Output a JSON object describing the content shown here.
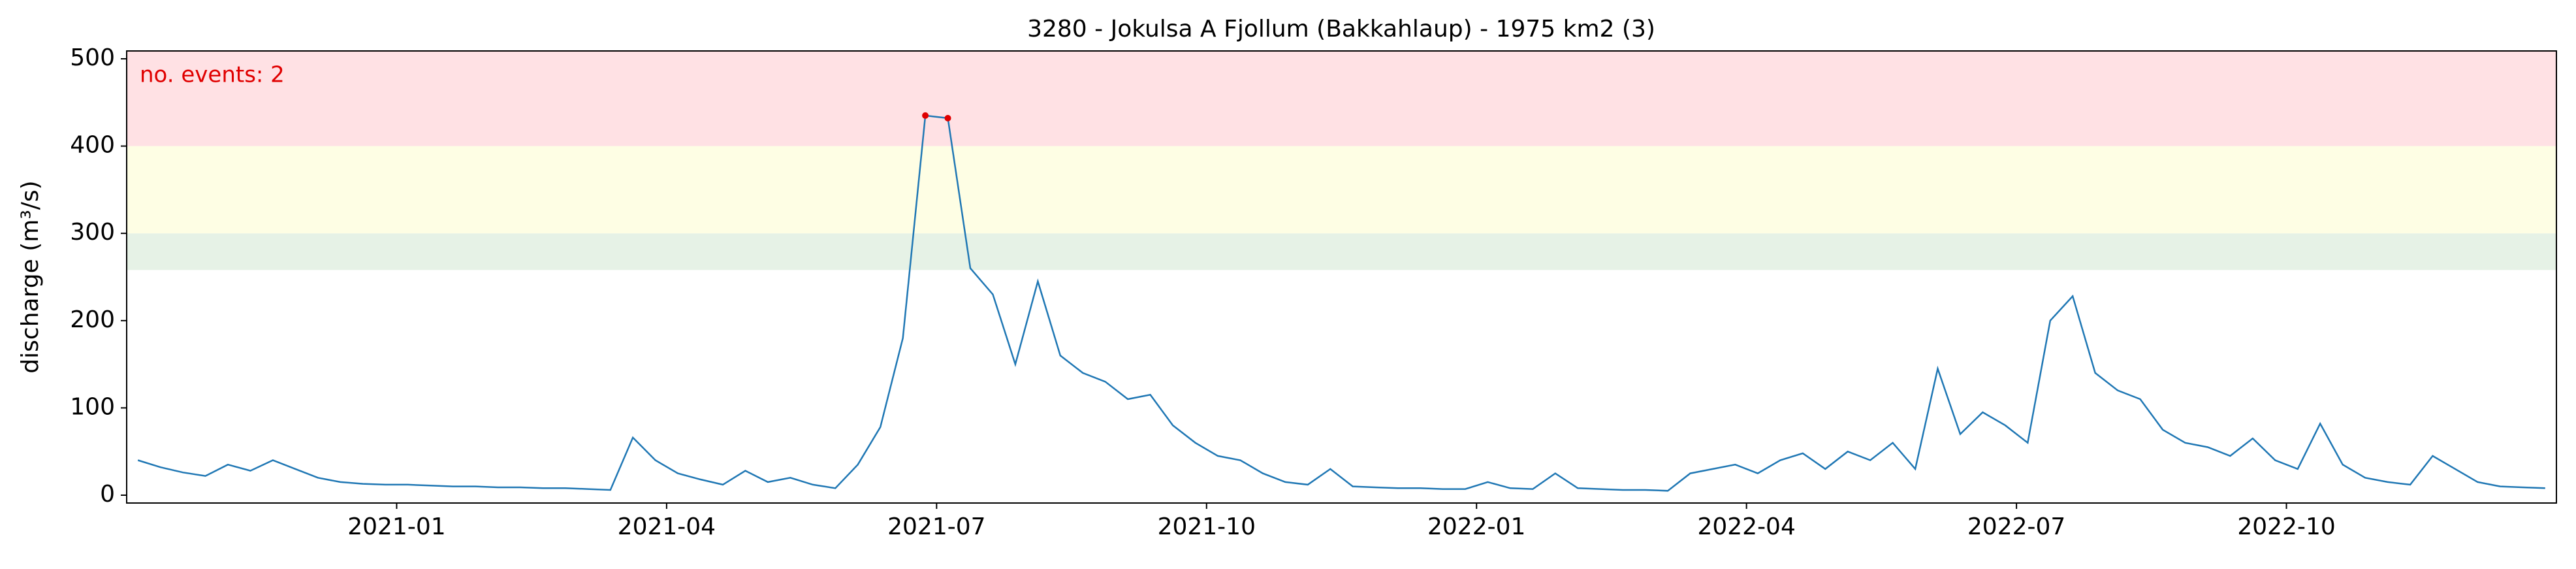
{
  "chart_data": {
    "type": "line",
    "title": "3280 - Jokulsa A Fjollum (Bakkahlaup) - 1975 km2 (3)",
    "ylabel": "discharge (m³/s)",
    "annotation": "no. events: 2",
    "annotation_color": "#e00000",
    "color": "#1f77b4",
    "x": [
      "2020-10",
      "2020-10",
      "2020-10",
      "2020-10",
      "2020-11",
      "2020-11",
      "2020-11",
      "2020-11",
      "2020-12",
      "2020-12",
      "2020-12",
      "2020-12",
      "2021-01",
      "2021-01",
      "2021-01",
      "2021-01",
      "2021-02",
      "2021-02",
      "2021-02",
      "2021-02",
      "2021-03",
      "2021-03",
      "2021-03",
      "2021-03",
      "2021-04",
      "2021-04",
      "2021-04",
      "2021-04",
      "2021-05",
      "2021-05",
      "2021-05",
      "2021-05",
      "2021-06",
      "2021-06",
      "2021-06",
      "2021-06",
      "2021-07",
      "2021-07",
      "2021-07",
      "2021-07",
      "2021-08",
      "2021-08",
      "2021-08",
      "2021-08",
      "2021-09",
      "2021-09",
      "2021-09",
      "2021-09",
      "2021-10",
      "2021-10",
      "2021-10",
      "2021-10",
      "2021-11",
      "2021-11",
      "2021-11",
      "2021-11",
      "2021-12",
      "2021-12",
      "2021-12",
      "2021-12",
      "2022-01",
      "2022-01",
      "2022-01",
      "2022-01",
      "2022-02",
      "2022-02",
      "2022-02",
      "2022-02",
      "2022-03",
      "2022-03",
      "2022-03",
      "2022-03",
      "2022-04",
      "2022-04",
      "2022-04",
      "2022-04",
      "2022-05",
      "2022-05",
      "2022-05",
      "2022-05",
      "2022-06",
      "2022-06",
      "2022-06",
      "2022-06",
      "2022-07",
      "2022-07",
      "2022-07",
      "2022-07",
      "2022-08",
      "2022-08",
      "2022-08",
      "2022-08",
      "2022-09",
      "2022-09",
      "2022-09",
      "2022-09",
      "2022-10",
      "2022-10",
      "2022-10",
      "2022-10",
      "2022-11",
      "2022-11",
      "2022-11",
      "2022-11",
      "2022-12",
      "2022-12",
      "2022-12",
      "2022-12"
    ],
    "values": [
      40,
      32,
      26,
      22,
      35,
      28,
      40,
      30,
      20,
      15,
      13,
      12,
      12,
      11,
      10,
      10,
      9,
      9,
      8,
      8,
      7,
      6,
      66,
      40,
      25,
      18,
      12,
      28,
      15,
      20,
      12,
      8,
      35,
      78,
      180,
      435,
      432,
      260,
      230,
      150,
      245,
      160,
      140,
      130,
      110,
      115,
      80,
      60,
      45,
      40,
      25,
      15,
      12,
      30,
      10,
      9,
      8,
      8,
      7,
      7,
      15,
      8,
      7,
      25,
      8,
      7,
      6,
      6,
      5,
      25,
      30,
      35,
      25,
      40,
      48,
      30,
      50,
      40,
      60,
      30,
      145,
      70,
      95,
      80,
      60,
      200,
      228,
      140,
      120,
      110,
      75,
      60,
      55,
      45,
      65,
      40,
      30,
      82,
      35,
      20,
      15,
      12,
      45,
      30,
      15,
      10,
      9,
      8
    ],
    "events": {
      "x": [
        "2021-06",
        "2021-07"
      ],
      "values": [
        435,
        432
      ],
      "color": "#e00000"
    },
    "bands": [
      {
        "from": 258,
        "to": 300,
        "color": "#e6f2e6"
      },
      {
        "from": 300,
        "to": 400,
        "color": "#fefee4"
      },
      {
        "from": 400,
        "color": "#ffe1e4"
      }
    ],
    "xlim": [
      "2020-10",
      "2023-01"
    ],
    "xticks": [
      "2021-01",
      "2021-04",
      "2021-07",
      "2021-10",
      "2022-01",
      "2022-04",
      "2022-07",
      "2022-10"
    ],
    "ylim": [
      -9,
      509
    ],
    "yticks": [
      0,
      100,
      200,
      300,
      400,
      500
    ]
  }
}
